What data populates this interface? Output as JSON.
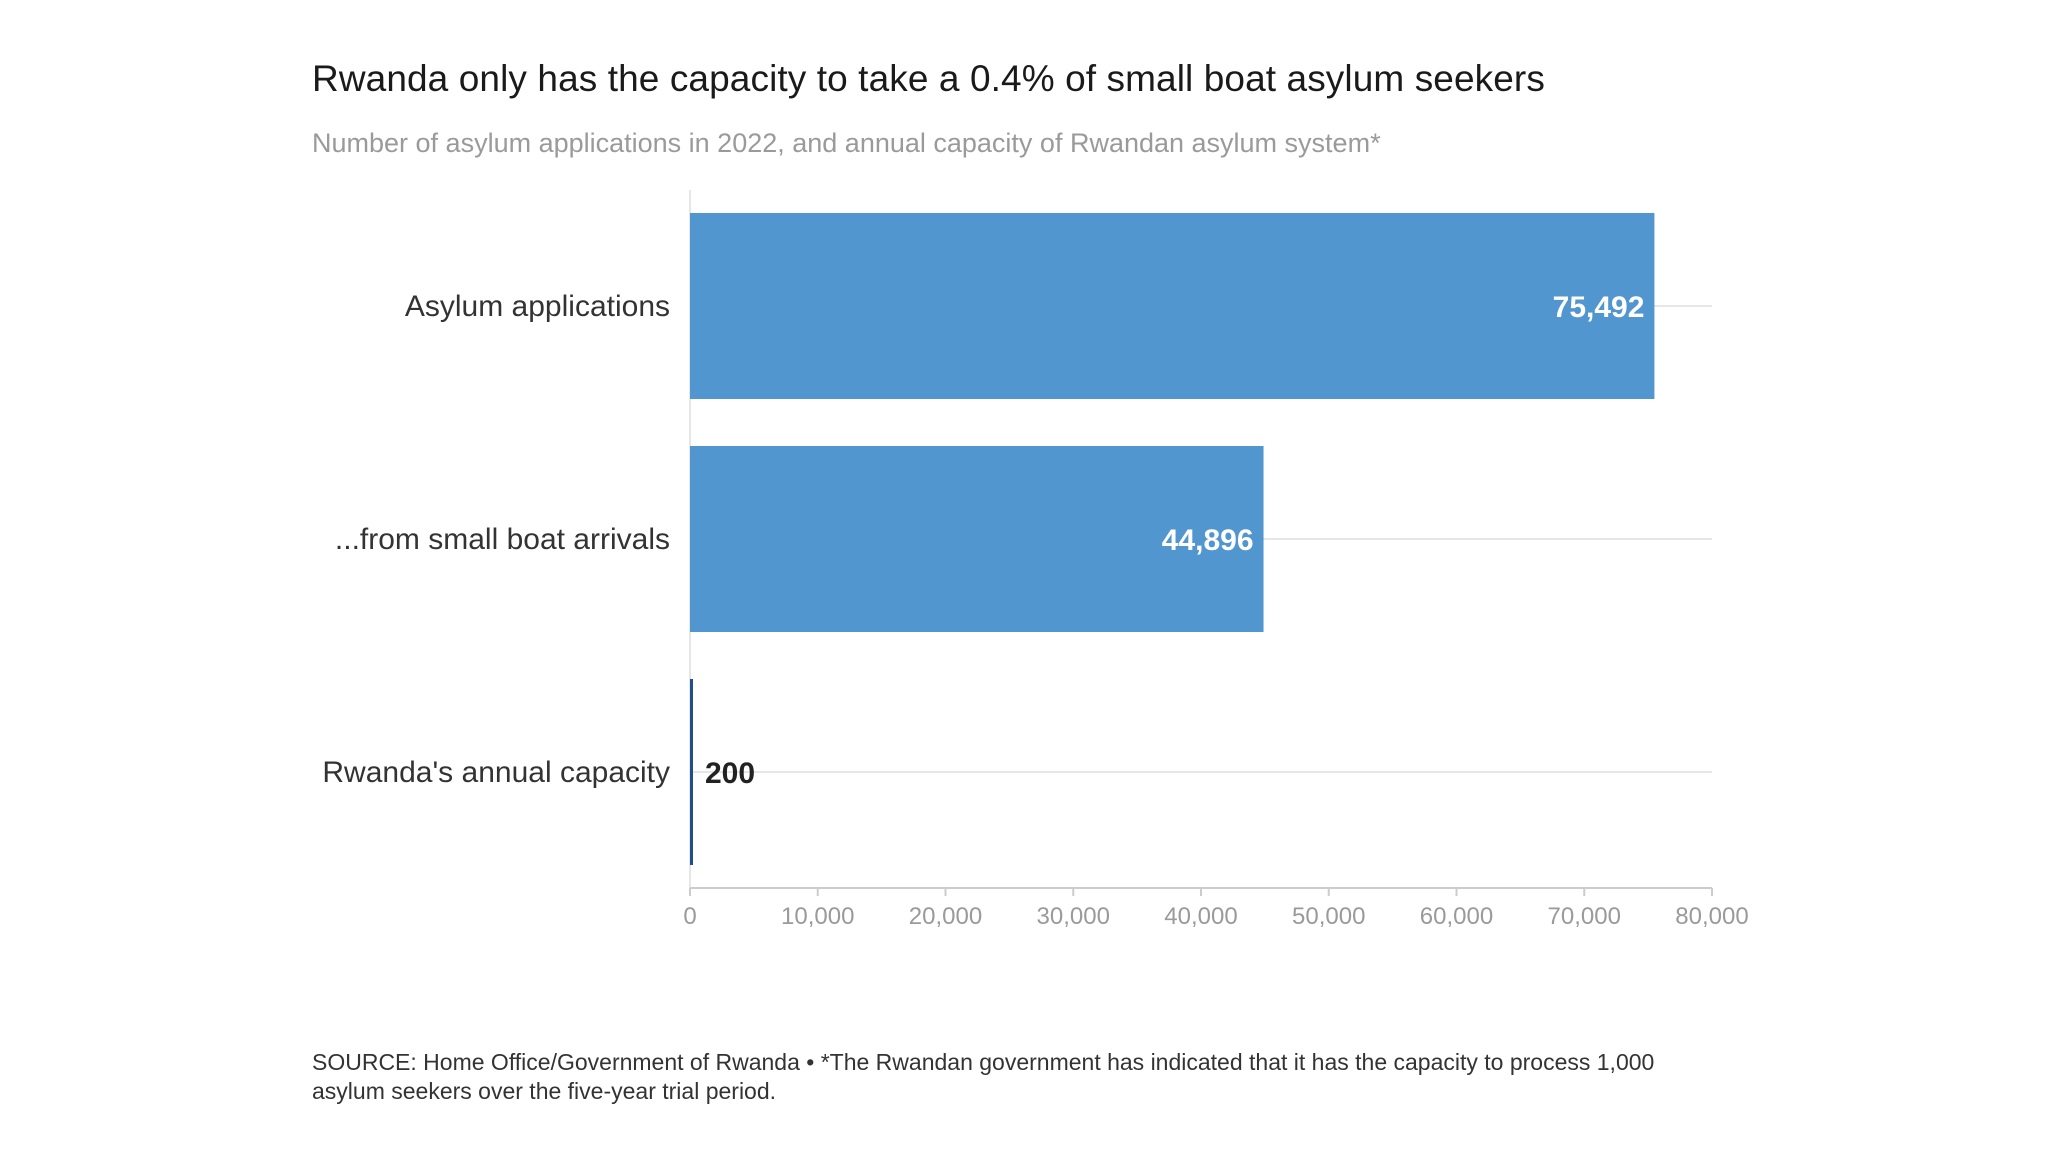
{
  "chart_data": {
    "type": "bar",
    "orientation": "horizontal",
    "title": "Rwanda only has the capacity to take a 0.4% of small boat asylum seekers",
    "subtitle": "Number of asylum applications in 2022, and annual capacity of Rwandan asylum system*",
    "categories": [
      "Asylum applications",
      "...from small boat arrivals",
      "Rwanda's annual capacity"
    ],
    "values": [
      75492,
      44896,
      200
    ],
    "value_labels": [
      "75,492",
      "44,896",
      "200"
    ],
    "xlim": [
      0,
      80000
    ],
    "xticks": [
      0,
      10000,
      20000,
      30000,
      40000,
      50000,
      60000,
      70000,
      80000
    ],
    "xtick_labels": [
      "0",
      "10,000",
      "20,000",
      "30,000",
      "40,000",
      "50,000",
      "60,000",
      "70,000",
      "80,000"
    ],
    "xlabel": "",
    "ylabel": "",
    "grid": true,
    "colors": {
      "bar": "#5296d0",
      "bar_small": "#1f4e8c",
      "label_inside": "#ffffff",
      "label_outside": "#222222",
      "grid": "#e6e6e6",
      "axis": "#cccccc",
      "tick_text": "#9a9a9a",
      "category_text": "#333333"
    }
  },
  "footer": {
    "source": "SOURCE: Home Office/Government of Rwanda • *The Rwandan government has indicated that it has the capacity to process 1,000 asylum seekers over the five-year trial period."
  }
}
